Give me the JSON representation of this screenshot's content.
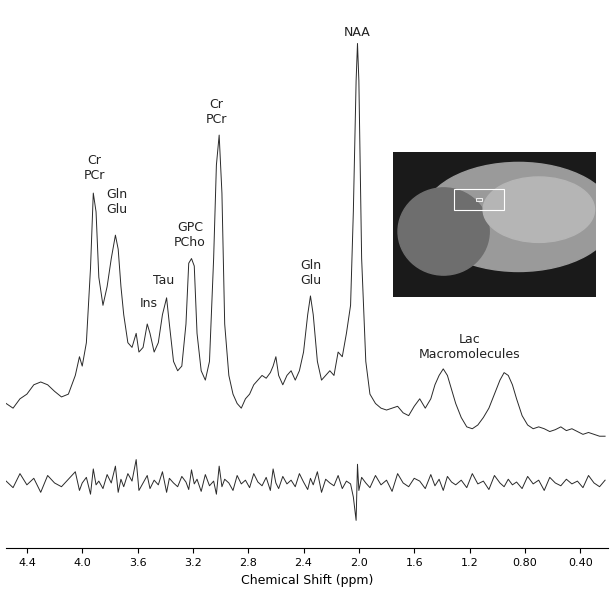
{
  "chart_data": {
    "type": "line",
    "x_label": "Chemical Shift (ppm)",
    "x": [
      4.55,
      4.5,
      4.45,
      4.4,
      4.35,
      4.3,
      4.25,
      4.2,
      4.15,
      4.1,
      4.05,
      4.02,
      4.0,
      3.97,
      3.94,
      3.92,
      3.9,
      3.88,
      3.85,
      3.82,
      3.79,
      3.76,
      3.74,
      3.72,
      3.7,
      3.67,
      3.64,
      3.61,
      3.59,
      3.56,
      3.53,
      3.51,
      3.48,
      3.45,
      3.42,
      3.39,
      3.37,
      3.34,
      3.31,
      3.28,
      3.25,
      3.23,
      3.21,
      3.19,
      3.17,
      3.14,
      3.11,
      3.08,
      3.05,
      3.03,
      3.01,
      2.99,
      2.97,
      2.94,
      2.91,
      2.88,
      2.85,
      2.82,
      2.79,
      2.76,
      2.73,
      2.7,
      2.67,
      2.64,
      2.62,
      2.6,
      2.58,
      2.55,
      2.52,
      2.49,
      2.46,
      2.43,
      2.4,
      2.37,
      2.35,
      2.33,
      2.3,
      2.27,
      2.24,
      2.21,
      2.18,
      2.15,
      2.12,
      2.09,
      2.06,
      2.04,
      2.02,
      2.01,
      2.0,
      1.98,
      1.95,
      1.92,
      1.88,
      1.84,
      1.8,
      1.76,
      1.72,
      1.68,
      1.64,
      1.6,
      1.56,
      1.52,
      1.48,
      1.45,
      1.42,
      1.39,
      1.36,
      1.33,
      1.3,
      1.26,
      1.22,
      1.18,
      1.14,
      1.1,
      1.06,
      1.02,
      0.98,
      0.95,
      0.92,
      0.89,
      0.86,
      0.82,
      0.78,
      0.74,
      0.7,
      0.66,
      0.62,
      0.58,
      0.54,
      0.5,
      0.46,
      0.42,
      0.38,
      0.34,
      0.3,
      0.26,
      0.22
    ],
    "series": [
      {
        "color": "#2a2a2a",
        "values": [
          155,
          150,
          160,
          165,
          175,
          178,
          175,
          168,
          162,
          165,
          185,
          205,
          195,
          220,
          300,
          380,
          360,
          290,
          260,
          280,
          310,
          335,
          320,
          280,
          250,
          220,
          215,
          230,
          210,
          215,
          240,
          230,
          210,
          220,
          250,
          268,
          240,
          200,
          190,
          195,
          240,
          305,
          310,
          302,
          230,
          190,
          180,
          200,
          310,
          410,
          442,
          380,
          240,
          185,
          165,
          155,
          150,
          160,
          165,
          175,
          180,
          185,
          182,
          188,
          195,
          205,
          185,
          175,
          185,
          190,
          180,
          190,
          210,
          250,
          270,
          250,
          200,
          180,
          185,
          190,
          185,
          210,
          205,
          230,
          260,
          360,
          500,
          540,
          500,
          310,
          200,
          165,
          155,
          150,
          148,
          150,
          152,
          145,
          142,
          152,
          160,
          150,
          160,
          175,
          185,
          192,
          185,
          170,
          155,
          140,
          130,
          128,
          132,
          140,
          150,
          165,
          180,
          188,
          185,
          175,
          160,
          142,
          132,
          128,
          130,
          128,
          125,
          127,
          130,
          126,
          128,
          125,
          122,
          124,
          122,
          120,
          120
        ]
      },
      {
        "color": "#2a2a2a",
        "values": [
          72,
          65,
          80,
          68,
          75,
          60,
          78,
          70,
          66,
          74,
          82,
          62,
          70,
          76,
          58,
          85,
          68,
          72,
          64,
          79,
          70,
          88,
          60,
          74,
          66,
          80,
          72,
          95,
          62,
          70,
          78,
          64,
          73,
          68,
          82,
          60,
          75,
          70,
          66,
          77,
          71,
          63,
          84,
          69,
          74,
          61,
          79,
          67,
          72,
          58,
          88,
          66,
          74,
          70,
          62,
          78,
          69,
          73,
          65,
          80,
          71,
          67,
          76,
          62,
          85,
          70,
          64,
          77,
          69,
          73,
          66,
          80,
          71,
          63,
          75,
          68,
          82,
          60,
          74,
          70,
          67,
          78,
          64,
          72,
          69,
          55,
          30,
          90,
          62,
          76,
          70,
          65,
          78,
          68,
          73,
          61,
          80,
          70,
          66,
          75,
          72,
          64,
          79,
          67,
          74,
          62,
          77,
          71,
          68,
          73,
          65,
          80,
          69,
          72,
          63,
          78,
          70,
          66,
          74,
          68,
          71,
          64,
          77,
          69,
          73,
          62,
          76,
          70,
          67,
          74,
          69,
          72,
          65,
          78,
          70,
          66,
          73
        ]
      }
    ],
    "annotations": [
      {
        "text": "Cr\nPCr",
        "x": 3.91,
        "y": 392
      },
      {
        "text": "Gln\nGlu",
        "x": 3.75,
        "y": 355
      },
      {
        "text": "Ins",
        "x": 3.52,
        "y": 255
      },
      {
        "text": "Tau",
        "x": 3.41,
        "y": 280
      },
      {
        "text": "GPC\nPCho",
        "x": 3.22,
        "y": 320
      },
      {
        "text": "Cr\nPCr",
        "x": 3.03,
        "y": 452
      },
      {
        "text": "Gln\nGlu",
        "x": 2.35,
        "y": 280
      },
      {
        "text": "NAA",
        "x": 2.01,
        "y": 545
      },
      {
        "text": "Lac\nMacromolecules",
        "x": 1.2,
        "y": 200
      }
    ],
    "xlim": [
      4.55,
      0.2
    ],
    "xticks": [
      4.4,
      4.0,
      3.6,
      3.2,
      2.8,
      2.4,
      2.0,
      1.6,
      1.2,
      {
        "value": 0.8,
        "label": "0.80"
      },
      {
        "value": 0.4,
        "label": "0.40"
      }
    ],
    "ylim": [
      0,
      580
    ],
    "yticks": [],
    "tick_labels": "x",
    "grid": false
  }
}
